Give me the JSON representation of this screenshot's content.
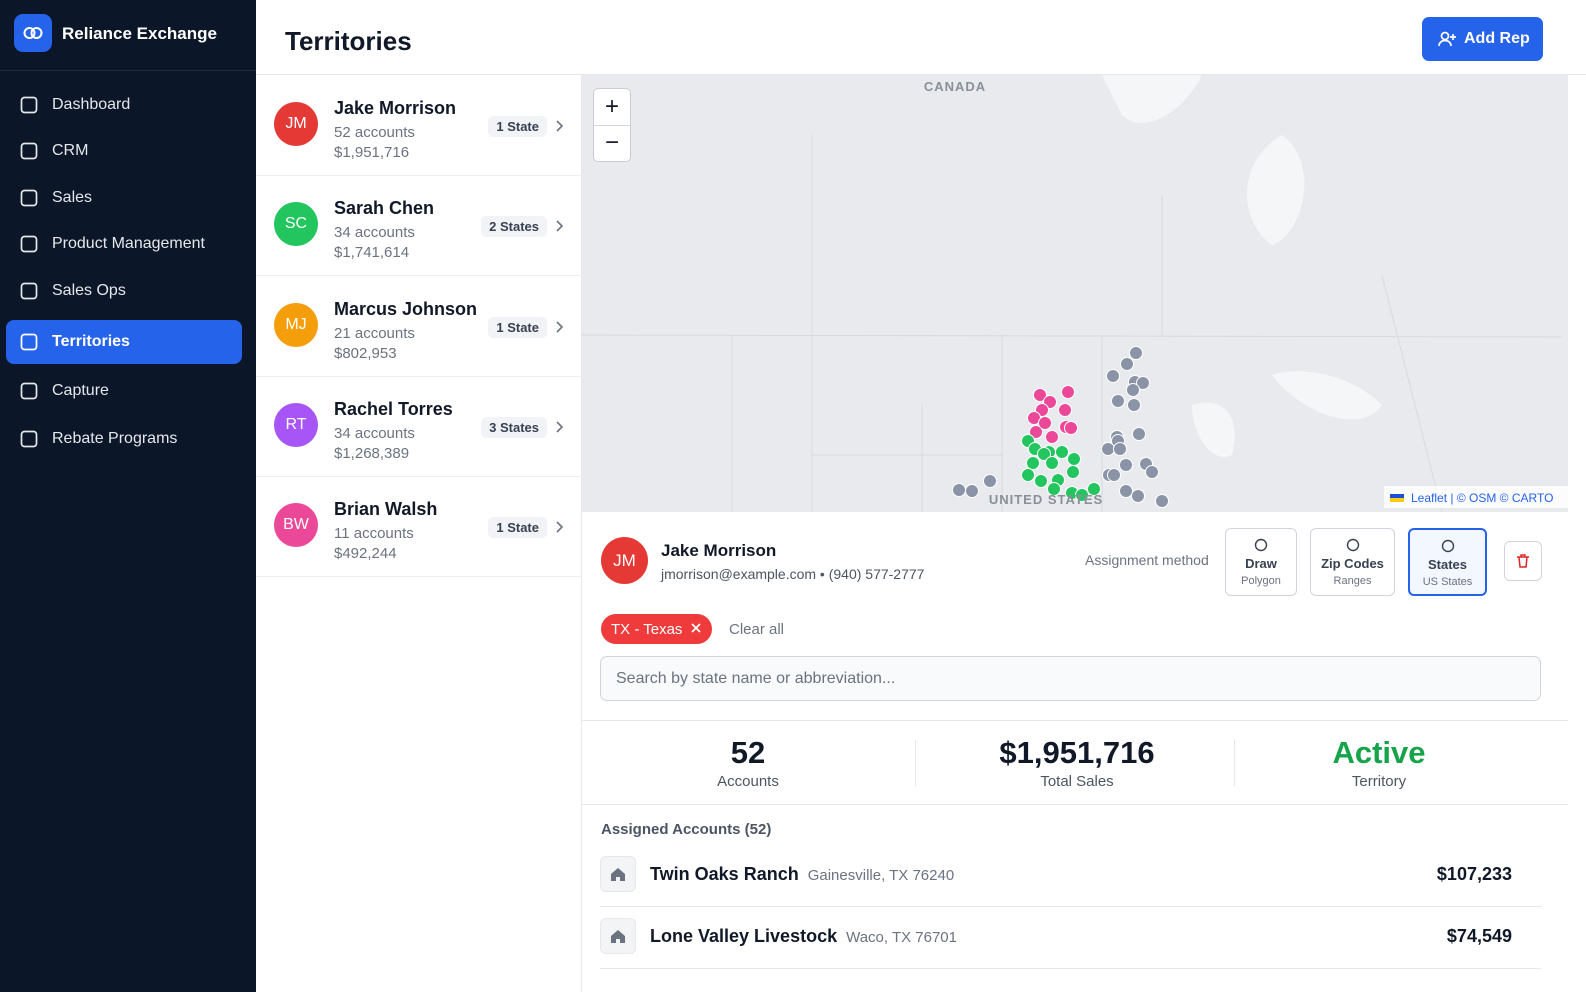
{
  "sidebar": {
    "brand": "Reliance Exchange",
    "nav": [
      "Dashboard",
      "CRM",
      "Sales",
      "Product Management",
      "Sales Ops",
      "Territories",
      "Capture",
      "Rebate Programs"
    ],
    "active": 5
  },
  "header": {
    "title": "Territories",
    "button": "Add Rep"
  },
  "reps": [
    {
      "initials": "JM",
      "name": "Jake Morrison",
      "accounts": "52 accounts",
      "sales": "$1,951,716",
      "states": "1 State",
      "color": "#e53935"
    },
    {
      "initials": "SC",
      "name": "Sarah Chen",
      "accounts": "34 accounts",
      "sales": "$1,741,614",
      "states": "2 States",
      "color": "#22c55e"
    },
    {
      "initials": "MJ",
      "name": "Marcus Johnson",
      "accounts": "21 accounts",
      "sales": "$802,953",
      "states": "1 State",
      "color": "#f59e0b"
    },
    {
      "initials": "RT",
      "name": "Rachel Torres",
      "accounts": "34 accounts",
      "sales": "$1,268,389",
      "states": "3 States",
      "color": "#a855f7"
    },
    {
      "initials": "BW",
      "name": "Brian Walsh",
      "accounts": "11 accounts",
      "sales": "$492,244",
      "states": "1 State",
      "color": "#ec4899"
    }
  ],
  "map": {
    "zoom_in": "+",
    "zoom_out": "−",
    "labels": [
      "CANADA",
      "UNITED STATES"
    ],
    "attribution": "Leaflet | © OSM © CARTO"
  },
  "detail": {
    "initials": "JM",
    "name": "Jake Morrison",
    "contact": "jmorrison@example.com • (940) 577-2777",
    "method_label": "Assignment method",
    "methods": [
      {
        "title": "Draw",
        "sub": "Polygon"
      },
      {
        "title": "Zip Codes",
        "sub": "Ranges"
      },
      {
        "title": "States",
        "sub": "US States"
      }
    ],
    "active_method": 2,
    "chips": [
      "TX - Texas"
    ],
    "clear": "Clear all",
    "search_placeholder": "Search by state name or abbreviation..."
  },
  "stats": [
    {
      "value": "52",
      "label": "Accounts"
    },
    {
      "value": "$1,951,716",
      "label": "Total Sales"
    },
    {
      "value": "Active",
      "label": "Territory"
    }
  ],
  "accounts": {
    "title": "Assigned Accounts (52)",
    "rows": [
      {
        "name": "Twin Oaks Ranch",
        "location": "Gainesville, TX 76240",
        "amount": "$107,233"
      },
      {
        "name": "Lone Valley Livestock",
        "location": "Waco, TX 76701",
        "amount": "$74,549"
      }
    ]
  }
}
